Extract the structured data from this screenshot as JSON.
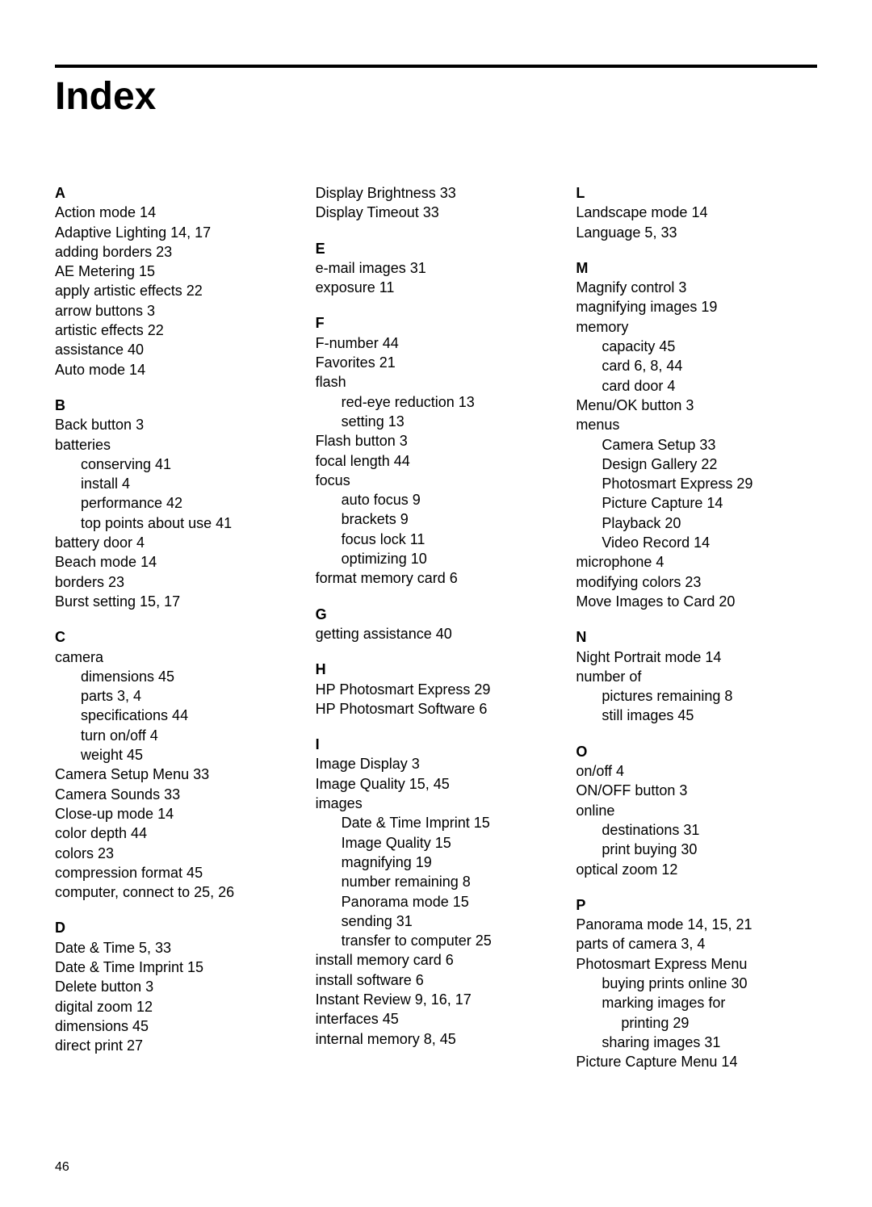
{
  "title": "Index",
  "pageNumber": "46",
  "columns": [
    [
      {
        "letter": "A",
        "entries": [
          {
            "text": "Action mode 14"
          },
          {
            "text": "Adaptive Lighting 14, 17"
          },
          {
            "text": "adding borders 23"
          },
          {
            "text": "AE Metering 15"
          },
          {
            "text": "apply artistic effects 22"
          },
          {
            "text": "arrow buttons 3"
          },
          {
            "text": "artistic effects 22"
          },
          {
            "text": "assistance 40"
          },
          {
            "text": "Auto mode 14"
          }
        ]
      },
      {
        "letter": "B",
        "entries": [
          {
            "text": "Back button 3"
          },
          {
            "text": "batteries"
          },
          {
            "text": "conserving 41",
            "indent": 1
          },
          {
            "text": "install 4",
            "indent": 1
          },
          {
            "text": "performance 42",
            "indent": 1
          },
          {
            "text": "top points about use 41",
            "indent": 1
          },
          {
            "text": "battery door 4"
          },
          {
            "text": "Beach mode 14"
          },
          {
            "text": "borders 23"
          },
          {
            "text": "Burst setting 15, 17"
          }
        ]
      },
      {
        "letter": "C",
        "entries": [
          {
            "text": "camera"
          },
          {
            "text": "dimensions 45",
            "indent": 1
          },
          {
            "text": "parts 3, 4",
            "indent": 1
          },
          {
            "text": "specifications 44",
            "indent": 1
          },
          {
            "text": "turn on/off 4",
            "indent": 1
          },
          {
            "text": "weight 45",
            "indent": 1
          },
          {
            "text": "Camera Setup Menu 33"
          },
          {
            "text": "Camera Sounds 33"
          },
          {
            "text": "Close-up mode 14"
          },
          {
            "text": "color depth 44"
          },
          {
            "text": "colors 23"
          },
          {
            "text": "compression format 45"
          },
          {
            "text": "computer, connect to 25, 26"
          }
        ]
      },
      {
        "letter": "D",
        "entries": [
          {
            "text": "Date & Time 5, 33"
          },
          {
            "text": "Date & Time Imprint 15"
          },
          {
            "text": "Delete button 3"
          },
          {
            "text": "digital zoom 12"
          },
          {
            "text": "dimensions 45"
          },
          {
            "text": "direct print 27"
          }
        ]
      }
    ],
    [
      {
        "letter": "",
        "entries": [
          {
            "text": "Display Brightness 33"
          },
          {
            "text": "Display Timeout 33"
          }
        ]
      },
      {
        "letter": "E",
        "entries": [
          {
            "text": "e-mail images 31"
          },
          {
            "text": "exposure 11"
          }
        ]
      },
      {
        "letter": "F",
        "entries": [
          {
            "text": "F-number 44"
          },
          {
            "text": "Favorites 21"
          },
          {
            "text": "flash"
          },
          {
            "text": "red-eye reduction 13",
            "indent": 1
          },
          {
            "text": "setting 13",
            "indent": 1
          },
          {
            "text": "Flash button 3"
          },
          {
            "text": "focal length 44"
          },
          {
            "text": "focus"
          },
          {
            "text": "auto focus 9",
            "indent": 1
          },
          {
            "text": "brackets 9",
            "indent": 1
          },
          {
            "text": "focus lock 11",
            "indent": 1
          },
          {
            "text": "optimizing 10",
            "indent": 1
          },
          {
            "text": "format memory card 6"
          }
        ]
      },
      {
        "letter": "G",
        "entries": [
          {
            "text": "getting assistance 40"
          }
        ]
      },
      {
        "letter": "H",
        "entries": [
          {
            "text": "HP Photosmart Express 29"
          },
          {
            "text": "HP Photosmart Software 6"
          }
        ]
      },
      {
        "letter": "I",
        "entries": [
          {
            "text": "Image Display 3"
          },
          {
            "text": "Image Quality 15, 45"
          },
          {
            "text": "images"
          },
          {
            "text": "Date & Time Imprint 15",
            "indent": 1
          },
          {
            "text": "Image Quality 15",
            "indent": 1
          },
          {
            "text": "magnifying 19",
            "indent": 1
          },
          {
            "text": "number remaining 8",
            "indent": 1
          },
          {
            "text": "Panorama mode 15",
            "indent": 1
          },
          {
            "text": "sending 31",
            "indent": 1
          },
          {
            "text": "transfer to computer 25",
            "indent": 1
          },
          {
            "text": "install memory card 6"
          },
          {
            "text": "install software 6"
          },
          {
            "text": "Instant Review 9, 16, 17"
          },
          {
            "text": "interfaces 45"
          },
          {
            "text": "internal memory 8, 45"
          }
        ]
      }
    ],
    [
      {
        "letter": "L",
        "entries": [
          {
            "text": "Landscape mode 14"
          },
          {
            "text": "Language 5, 33"
          }
        ]
      },
      {
        "letter": "M",
        "entries": [
          {
            "text": "Magnify control 3"
          },
          {
            "text": "magnifying images 19"
          },
          {
            "text": "memory"
          },
          {
            "text": "capacity 45",
            "indent": 1
          },
          {
            "text": "card 6, 8, 44",
            "indent": 1
          },
          {
            "text": "card door 4",
            "indent": 1
          },
          {
            "text": "Menu/OK button 3"
          },
          {
            "text": "menus"
          },
          {
            "text": "Camera Setup 33",
            "indent": 1
          },
          {
            "text": "Design Gallery 22",
            "indent": 1
          },
          {
            "text": "Photosmart Express 29",
            "indent": 1
          },
          {
            "text": "Picture Capture 14",
            "indent": 1
          },
          {
            "text": "Playback 20",
            "indent": 1
          },
          {
            "text": "Video Record 14",
            "indent": 1
          },
          {
            "text": "microphone 4"
          },
          {
            "text": "modifying colors 23"
          },
          {
            "text": "Move Images to Card 20"
          }
        ]
      },
      {
        "letter": "N",
        "entries": [
          {
            "text": "Night Portrait mode 14"
          },
          {
            "text": "number of"
          },
          {
            "text": "pictures remaining 8",
            "indent": 1
          },
          {
            "text": "still images 45",
            "indent": 1
          }
        ]
      },
      {
        "letter": "O",
        "entries": [
          {
            "text": "on/off 4"
          },
          {
            "text": "ON/OFF button 3"
          },
          {
            "text": "online"
          },
          {
            "text": "destinations 31",
            "indent": 1
          },
          {
            "text": "print buying 30",
            "indent": 1
          },
          {
            "text": "optical zoom 12"
          }
        ]
      },
      {
        "letter": "P",
        "entries": [
          {
            "text": "Panorama mode 14, 15, 21"
          },
          {
            "text": "parts of camera 3, 4"
          },
          {
            "text": "Photosmart Express Menu"
          },
          {
            "text": "buying prints online 30",
            "indent": 1
          },
          {
            "text": "marking images for",
            "indent": 1
          },
          {
            "text": "printing 29",
            "indent": 2
          },
          {
            "text": "sharing images 31",
            "indent": 1
          },
          {
            "text": "Picture Capture Menu 14"
          }
        ]
      }
    ]
  ]
}
